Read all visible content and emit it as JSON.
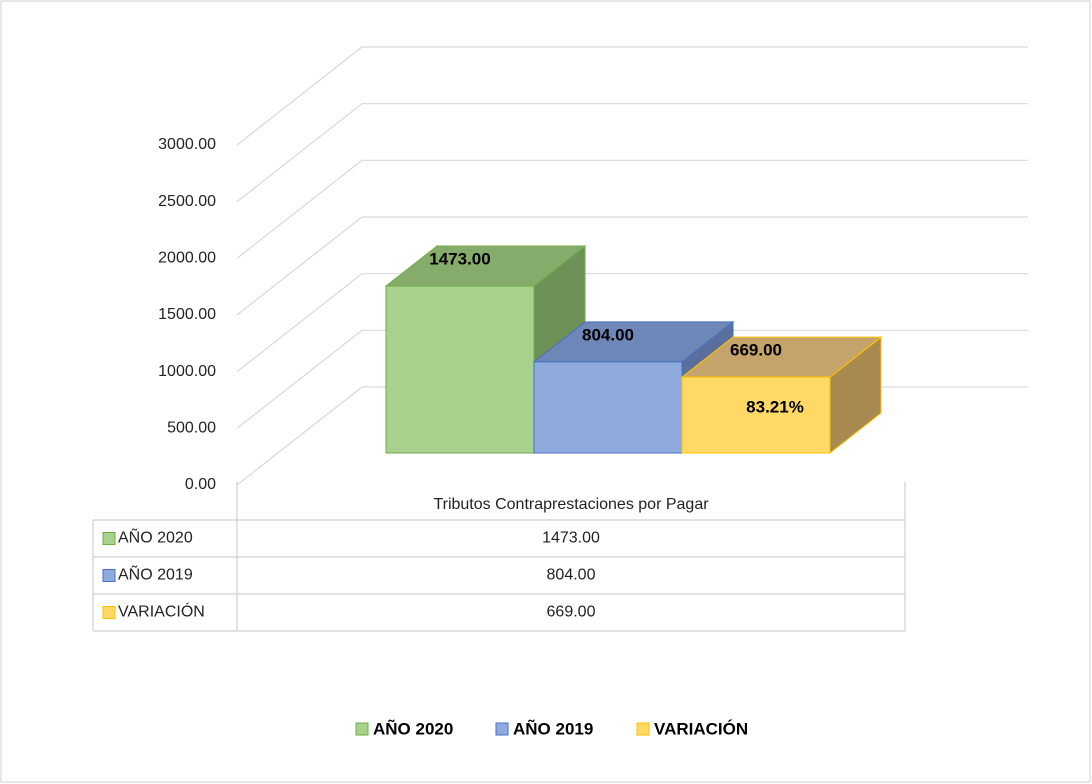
{
  "chart_data": {
    "type": "bar3d",
    "categories": [
      "Tributos Contraprestaciones por Pagar"
    ],
    "series": [
      {
        "name": "AÑO 2020",
        "color": "#a9d18e",
        "values": [
          1473
        ],
        "value_labels": [
          "1473.00"
        ]
      },
      {
        "name": "AÑO 2019",
        "color": "#8faadc",
        "values": [
          804
        ],
        "value_labels": [
          "804.00"
        ]
      },
      {
        "name": "VARIACIÓN",
        "color": "#ffd966",
        "values": [
          669
        ],
        "value_labels": [
          "669.00"
        ]
      }
    ],
    "annotation": "83.21%",
    "ylim": [
      0,
      3000
    ],
    "yticks": [
      {
        "value": 0,
        "label": "0.00"
      },
      {
        "value": 500,
        "label": "500.00"
      },
      {
        "value": 1000,
        "label": "1000.00"
      },
      {
        "value": 1500,
        "label": "1500.00"
      },
      {
        "value": 2000,
        "label": "2000.00"
      },
      {
        "value": 2500,
        "label": "2500.00"
      },
      {
        "value": 3000,
        "label": "3000.00"
      }
    ],
    "grid": true,
    "data_table": true,
    "legend": "bottom"
  }
}
